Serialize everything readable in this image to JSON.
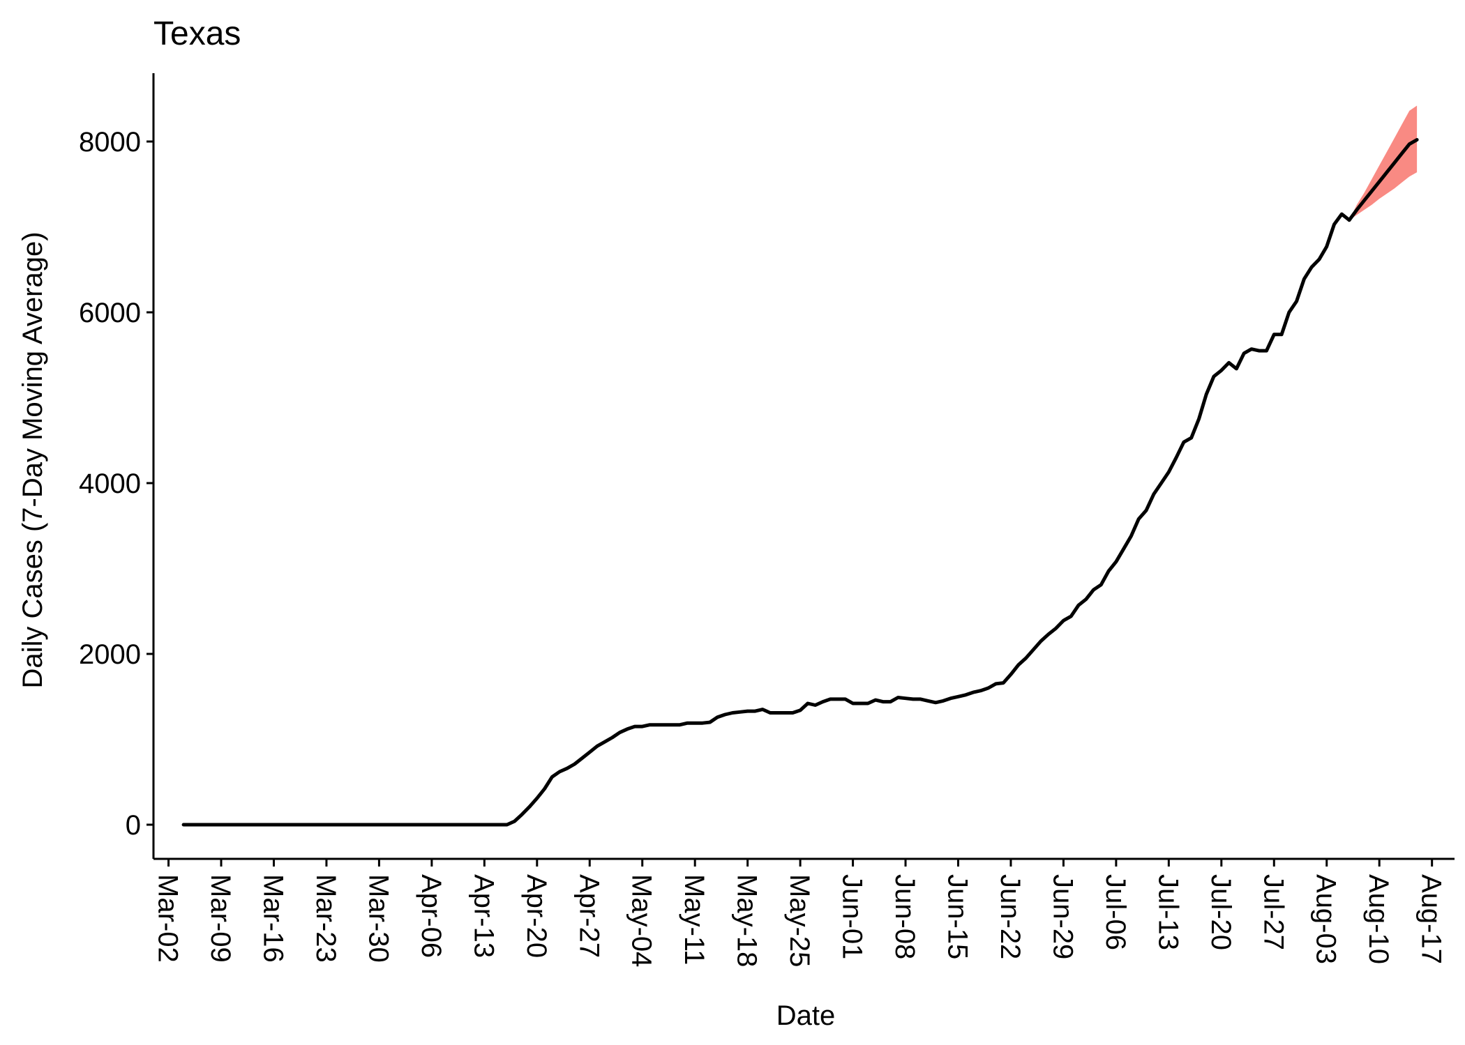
{
  "chart_data": {
    "type": "line",
    "title": "Texas",
    "xlabel": "Date",
    "ylabel": "Daily Cases (7-Day Moving Average)",
    "x_type": "date",
    "xlim": [
      "2020-02-29",
      "2020-08-20"
    ],
    "ylim": [
      -400,
      8800
    ],
    "yticks": [
      0,
      2000,
      4000,
      6000,
      8000
    ],
    "xticks": [
      {
        "date": "2020-03-02",
        "label": "Mar-02"
      },
      {
        "date": "2020-03-09",
        "label": "Mar-09"
      },
      {
        "date": "2020-03-16",
        "label": "Mar-16"
      },
      {
        "date": "2020-03-23",
        "label": "Mar-23"
      },
      {
        "date": "2020-03-30",
        "label": "Mar-30"
      },
      {
        "date": "2020-04-06",
        "label": "Apr-06"
      },
      {
        "date": "2020-04-13",
        "label": "Apr-13"
      },
      {
        "date": "2020-04-20",
        "label": "Apr-20"
      },
      {
        "date": "2020-04-27",
        "label": "Apr-27"
      },
      {
        "date": "2020-05-04",
        "label": "May-04"
      },
      {
        "date": "2020-05-11",
        "label": "May-11"
      },
      {
        "date": "2020-05-18",
        "label": "May-18"
      },
      {
        "date": "2020-05-25",
        "label": "May-25"
      },
      {
        "date": "2020-06-01",
        "label": "Jun-01"
      },
      {
        "date": "2020-06-08",
        "label": "Jun-08"
      },
      {
        "date": "2020-06-15",
        "label": "Jun-15"
      },
      {
        "date": "2020-06-22",
        "label": "Jun-22"
      },
      {
        "date": "2020-06-29",
        "label": "Jun-29"
      },
      {
        "date": "2020-07-06",
        "label": "Jul-06"
      },
      {
        "date": "2020-07-13",
        "label": "Jul-13"
      },
      {
        "date": "2020-07-20",
        "label": "Jul-20"
      },
      {
        "date": "2020-07-27",
        "label": "Jul-27"
      },
      {
        "date": "2020-08-03",
        "label": "Aug-03"
      },
      {
        "date": "2020-08-10",
        "label": "Aug-10"
      },
      {
        "date": "2020-08-17",
        "label": "Aug-17"
      }
    ],
    "grid": false,
    "legend": "none",
    "colors": {
      "line": "#000000",
      "band": "#F8766D"
    },
    "series": [
      {
        "role": "observed",
        "points": [
          [
            "2020-03-04",
            0
          ],
          [
            "2020-03-11",
            0
          ],
          [
            "2020-03-18",
            0
          ],
          [
            "2020-03-25",
            0
          ],
          [
            "2020-04-01",
            0
          ],
          [
            "2020-04-08",
            0
          ],
          [
            "2020-04-15",
            0
          ],
          [
            "2020-04-16",
            0
          ],
          [
            "2020-04-17",
            40
          ],
          [
            "2020-04-18",
            120
          ],
          [
            "2020-04-19",
            210
          ],
          [
            "2020-04-20",
            310
          ],
          [
            "2020-04-21",
            420
          ],
          [
            "2020-04-22",
            560
          ],
          [
            "2020-04-23",
            620
          ],
          [
            "2020-04-24",
            660
          ],
          [
            "2020-04-25",
            710
          ],
          [
            "2020-04-26",
            780
          ],
          [
            "2020-04-27",
            850
          ],
          [
            "2020-04-28",
            920
          ],
          [
            "2020-04-29",
            970
          ],
          [
            "2020-04-30",
            1020
          ],
          [
            "2020-05-01",
            1080
          ],
          [
            "2020-05-02",
            1120
          ],
          [
            "2020-05-03",
            1150
          ],
          [
            "2020-05-04",
            1150
          ],
          [
            "2020-05-05",
            1170
          ],
          [
            "2020-05-07",
            1170
          ],
          [
            "2020-05-09",
            1170
          ],
          [
            "2020-05-10",
            1190
          ],
          [
            "2020-05-12",
            1190
          ],
          [
            "2020-05-13",
            1200
          ],
          [
            "2020-05-14",
            1260
          ],
          [
            "2020-05-15",
            1290
          ],
          [
            "2020-05-16",
            1310
          ],
          [
            "2020-05-17",
            1320
          ],
          [
            "2020-05-18",
            1330
          ],
          [
            "2020-05-19",
            1330
          ],
          [
            "2020-05-20",
            1350
          ],
          [
            "2020-05-21",
            1310
          ],
          [
            "2020-05-22",
            1310
          ],
          [
            "2020-05-23",
            1310
          ],
          [
            "2020-05-24",
            1310
          ],
          [
            "2020-05-25",
            1340
          ],
          [
            "2020-05-26",
            1420
          ],
          [
            "2020-05-27",
            1400
          ],
          [
            "2020-05-28",
            1440
          ],
          [
            "2020-05-29",
            1470
          ],
          [
            "2020-05-30",
            1470
          ],
          [
            "2020-05-31",
            1470
          ],
          [
            "2020-06-01",
            1420
          ],
          [
            "2020-06-02",
            1420
          ],
          [
            "2020-06-03",
            1420
          ],
          [
            "2020-06-04",
            1460
          ],
          [
            "2020-06-05",
            1440
          ],
          [
            "2020-06-06",
            1440
          ],
          [
            "2020-06-07",
            1490
          ],
          [
            "2020-06-08",
            1480
          ],
          [
            "2020-06-09",
            1470
          ],
          [
            "2020-06-10",
            1470
          ],
          [
            "2020-06-11",
            1450
          ],
          [
            "2020-06-12",
            1430
          ],
          [
            "2020-06-13",
            1450
          ],
          [
            "2020-06-14",
            1480
          ],
          [
            "2020-06-15",
            1500
          ],
          [
            "2020-06-16",
            1520
          ],
          [
            "2020-06-17",
            1550
          ],
          [
            "2020-06-18",
            1570
          ],
          [
            "2020-06-19",
            1600
          ],
          [
            "2020-06-20",
            1650
          ],
          [
            "2020-06-21",
            1660
          ],
          [
            "2020-06-22",
            1760
          ],
          [
            "2020-06-23",
            1870
          ],
          [
            "2020-06-24",
            1950
          ],
          [
            "2020-06-25",
            2050
          ],
          [
            "2020-06-26",
            2150
          ],
          [
            "2020-06-27",
            2230
          ],
          [
            "2020-06-28",
            2300
          ],
          [
            "2020-06-29",
            2390
          ],
          [
            "2020-06-30",
            2440
          ],
          [
            "2020-07-01",
            2570
          ],
          [
            "2020-07-02",
            2640
          ],
          [
            "2020-07-03",
            2750
          ],
          [
            "2020-07-04",
            2810
          ],
          [
            "2020-07-05",
            2970
          ],
          [
            "2020-07-06",
            3080
          ],
          [
            "2020-07-07",
            3230
          ],
          [
            "2020-07-08",
            3380
          ],
          [
            "2020-07-09",
            3580
          ],
          [
            "2020-07-10",
            3680
          ],
          [
            "2020-07-11",
            3870
          ],
          [
            "2020-07-12",
            4000
          ],
          [
            "2020-07-13",
            4130
          ],
          [
            "2020-07-14",
            4300
          ],
          [
            "2020-07-15",
            4480
          ],
          [
            "2020-07-16",
            4530
          ],
          [
            "2020-07-17",
            4750
          ],
          [
            "2020-07-18",
            5040
          ],
          [
            "2020-07-19",
            5250
          ],
          [
            "2020-07-20",
            5320
          ],
          [
            "2020-07-21",
            5410
          ],
          [
            "2020-07-22",
            5340
          ],
          [
            "2020-07-23",
            5520
          ],
          [
            "2020-07-24",
            5570
          ],
          [
            "2020-07-25",
            5550
          ],
          [
            "2020-07-26",
            5550
          ],
          [
            "2020-07-27",
            5740
          ],
          [
            "2020-07-28",
            5740
          ],
          [
            "2020-07-29",
            6000
          ],
          [
            "2020-07-30",
            6130
          ],
          [
            "2020-07-31",
            6390
          ],
          [
            "2020-08-01",
            6530
          ],
          [
            "2020-08-02",
            6620
          ],
          [
            "2020-08-03",
            6770
          ],
          [
            "2020-08-04",
            7030
          ],
          [
            "2020-08-05",
            7150
          ],
          [
            "2020-08-06",
            7080
          ]
        ]
      },
      {
        "role": "projection",
        "points": [
          [
            "2020-08-06",
            7080
          ],
          [
            "2020-08-07",
            7200
          ],
          [
            "2020-08-08",
            7310
          ],
          [
            "2020-08-09",
            7420
          ],
          [
            "2020-08-10",
            7530
          ],
          [
            "2020-08-11",
            7640
          ],
          [
            "2020-08-12",
            7750
          ],
          [
            "2020-08-13",
            7860
          ],
          [
            "2020-08-14",
            7970
          ],
          [
            "2020-08-15",
            8020
          ]
        ],
        "band": [
          [
            "2020-08-06",
            7080,
            7080
          ],
          [
            "2020-08-07",
            7140,
            7260
          ],
          [
            "2020-08-08",
            7200,
            7400
          ],
          [
            "2020-08-09",
            7260,
            7560
          ],
          [
            "2020-08-10",
            7330,
            7720
          ],
          [
            "2020-08-11",
            7390,
            7880
          ],
          [
            "2020-08-12",
            7450,
            8040
          ],
          [
            "2020-08-13",
            7520,
            8200
          ],
          [
            "2020-08-14",
            7590,
            8360
          ],
          [
            "2020-08-15",
            7640,
            8420
          ]
        ]
      }
    ]
  }
}
